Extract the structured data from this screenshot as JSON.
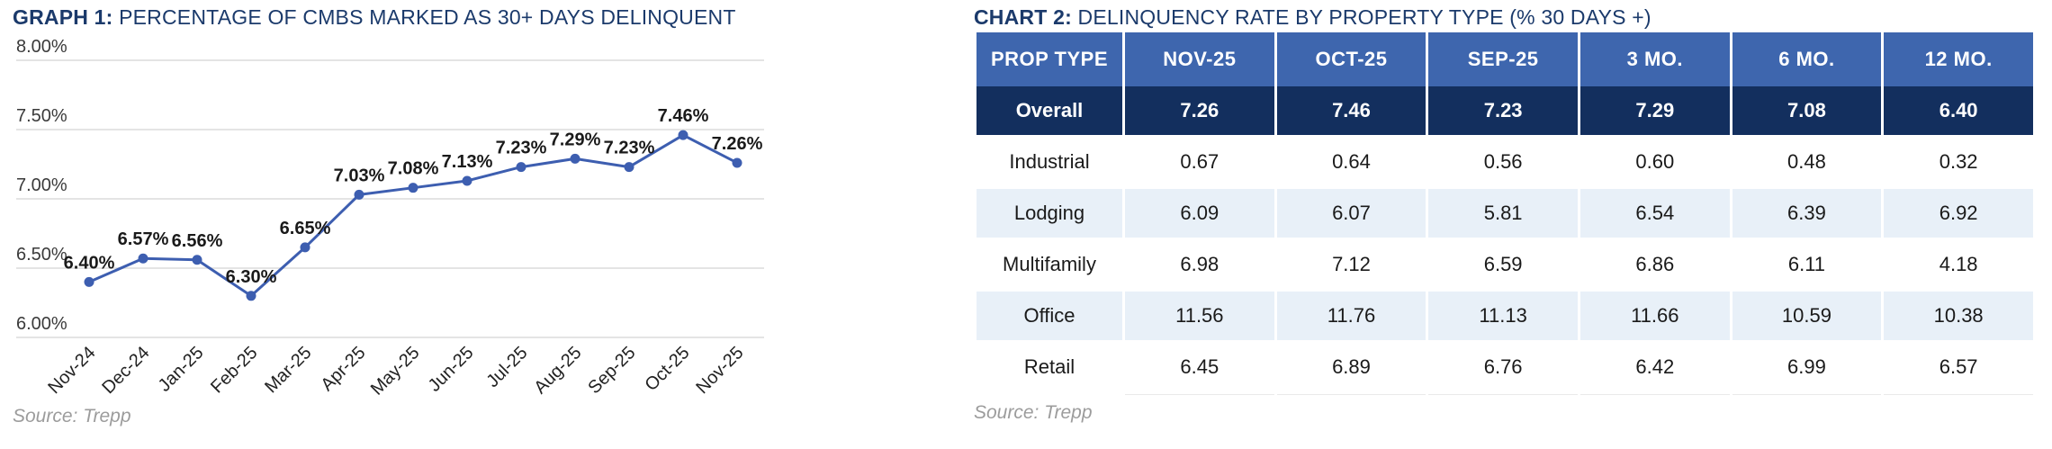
{
  "graph1": {
    "title_prefix": "GRAPH 1:",
    "title_rest": " PERCENTAGE OF CMBS MARKED AS 30+ DAYS DELINQUENT",
    "source": "Source: Trepp"
  },
  "chart2": {
    "title_prefix": "CHART 2:",
    "title_rest": " DELINQUENCY RATE BY PROPERTY TYPE (% 30 DAYS +)",
    "source": "Source: Trepp"
  },
  "colors": {
    "title_navy": "#1B3A6B",
    "header_blue": "#3E66AE",
    "overall_navy": "#132F5E",
    "light_row": "#E8F0F8",
    "line_blue": "#3D5EB0",
    "grid_gray": "#E4E4E4",
    "label_dark": "#1A1A1A",
    "source_gray": "#9C9C9C"
  },
  "chart_data": [
    {
      "type": "line",
      "title": "GRAPH 1: PERCENTAGE OF CMBS MARKED AS 30+ DAYS DELINQUENT",
      "x": [
        "Nov-24",
        "Dec-24",
        "Jan-25",
        "Feb-25",
        "Mar-25",
        "Apr-25",
        "May-25",
        "Jun-25",
        "Jul-25",
        "Aug-25",
        "Sep-25",
        "Oct-25",
        "Nov-25"
      ],
      "values": [
        6.4,
        6.57,
        6.56,
        6.3,
        6.65,
        7.03,
        7.08,
        7.13,
        7.23,
        7.29,
        7.23,
        7.46,
        7.26
      ],
      "point_labels": [
        "6.40%",
        "6.57%",
        "6.56%",
        "6.30%",
        "6.65%",
        "7.03%",
        "7.08%",
        "7.13%",
        "7.23%",
        "7.29%",
        "7.23%",
        "7.46%",
        "7.26%"
      ],
      "ylim": [
        6.0,
        8.0
      ],
      "yticks": [
        8.0,
        7.5,
        7.0,
        6.5,
        6.0
      ],
      "ytick_labels": [
        "8.00%",
        "7.50%",
        "7.00%",
        "6.50%",
        "6.00%"
      ],
      "grid": true,
      "legend": "none",
      "source": "Source: Trepp"
    },
    {
      "type": "table",
      "title": "CHART 2: DELINQUENCY RATE BY PROPERTY TYPE (% 30 DAYS +)",
      "columns": [
        "PROP TYPE",
        "NOV-25",
        "OCT-25",
        "SEP-25",
        "3 MO.",
        "6 MO.",
        "12 MO."
      ],
      "rows": [
        {
          "label": "Overall",
          "emphasis": true,
          "values": [
            "7.26",
            "7.46",
            "7.23",
            "7.29",
            "7.08",
            "6.40"
          ]
        },
        {
          "label": "Industrial",
          "emphasis": false,
          "values": [
            "0.67",
            "0.64",
            "0.56",
            "0.60",
            "0.48",
            "0.32"
          ]
        },
        {
          "label": "Lodging",
          "emphasis": false,
          "values": [
            "6.09",
            "6.07",
            "5.81",
            "6.54",
            "6.39",
            "6.92"
          ]
        },
        {
          "label": "Multifamily",
          "emphasis": false,
          "values": [
            "6.98",
            "7.12",
            "6.59",
            "6.86",
            "6.11",
            "4.18"
          ]
        },
        {
          "label": "Office",
          "emphasis": false,
          "values": [
            "11.56",
            "11.76",
            "11.13",
            "11.66",
            "10.59",
            "10.38"
          ]
        },
        {
          "label": "Retail",
          "emphasis": false,
          "values": [
            "6.45",
            "6.89",
            "6.76",
            "6.42",
            "6.99",
            "6.57"
          ]
        }
      ],
      "source": "Source: Trepp"
    }
  ]
}
